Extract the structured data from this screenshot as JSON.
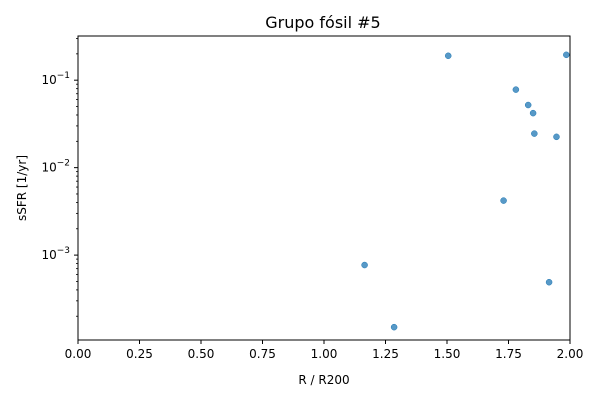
{
  "chart_data": {
    "type": "scatter",
    "title": "Grupo fósil #5",
    "xlabel": "R / R200",
    "ylabel": "sSFR [1/yr]",
    "xlim": [
      0.0,
      2.0
    ],
    "ylim": [
      0.000107,
      0.32
    ],
    "yscale": "log",
    "grid": false,
    "x_ticks": [
      "0.00",
      "0.25",
      "0.50",
      "0.75",
      "1.00",
      "1.25",
      "1.50",
      "1.75",
      "2.00"
    ],
    "y_major_ticks": [
      {
        "base": "10",
        "exp": "−3",
        "value": 0.001
      },
      {
        "base": "10",
        "exp": "−2",
        "value": 0.01
      },
      {
        "base": "10",
        "exp": "−1",
        "value": 0.1
      }
    ],
    "marker_color": "#1f77b4",
    "points": [
      {
        "x": 1.505,
        "y": 0.19
      },
      {
        "x": 1.985,
        "y": 0.195
      },
      {
        "x": 1.78,
        "y": 0.078
      },
      {
        "x": 1.83,
        "y": 0.052
      },
      {
        "x": 1.85,
        "y": 0.042
      },
      {
        "x": 1.855,
        "y": 0.0245
      },
      {
        "x": 1.945,
        "y": 0.0225
      },
      {
        "x": 1.73,
        "y": 0.0042
      },
      {
        "x": 1.165,
        "y": 0.00077
      },
      {
        "x": 1.915,
        "y": 0.00049
      },
      {
        "x": 1.285,
        "y": 0.00015
      }
    ]
  }
}
